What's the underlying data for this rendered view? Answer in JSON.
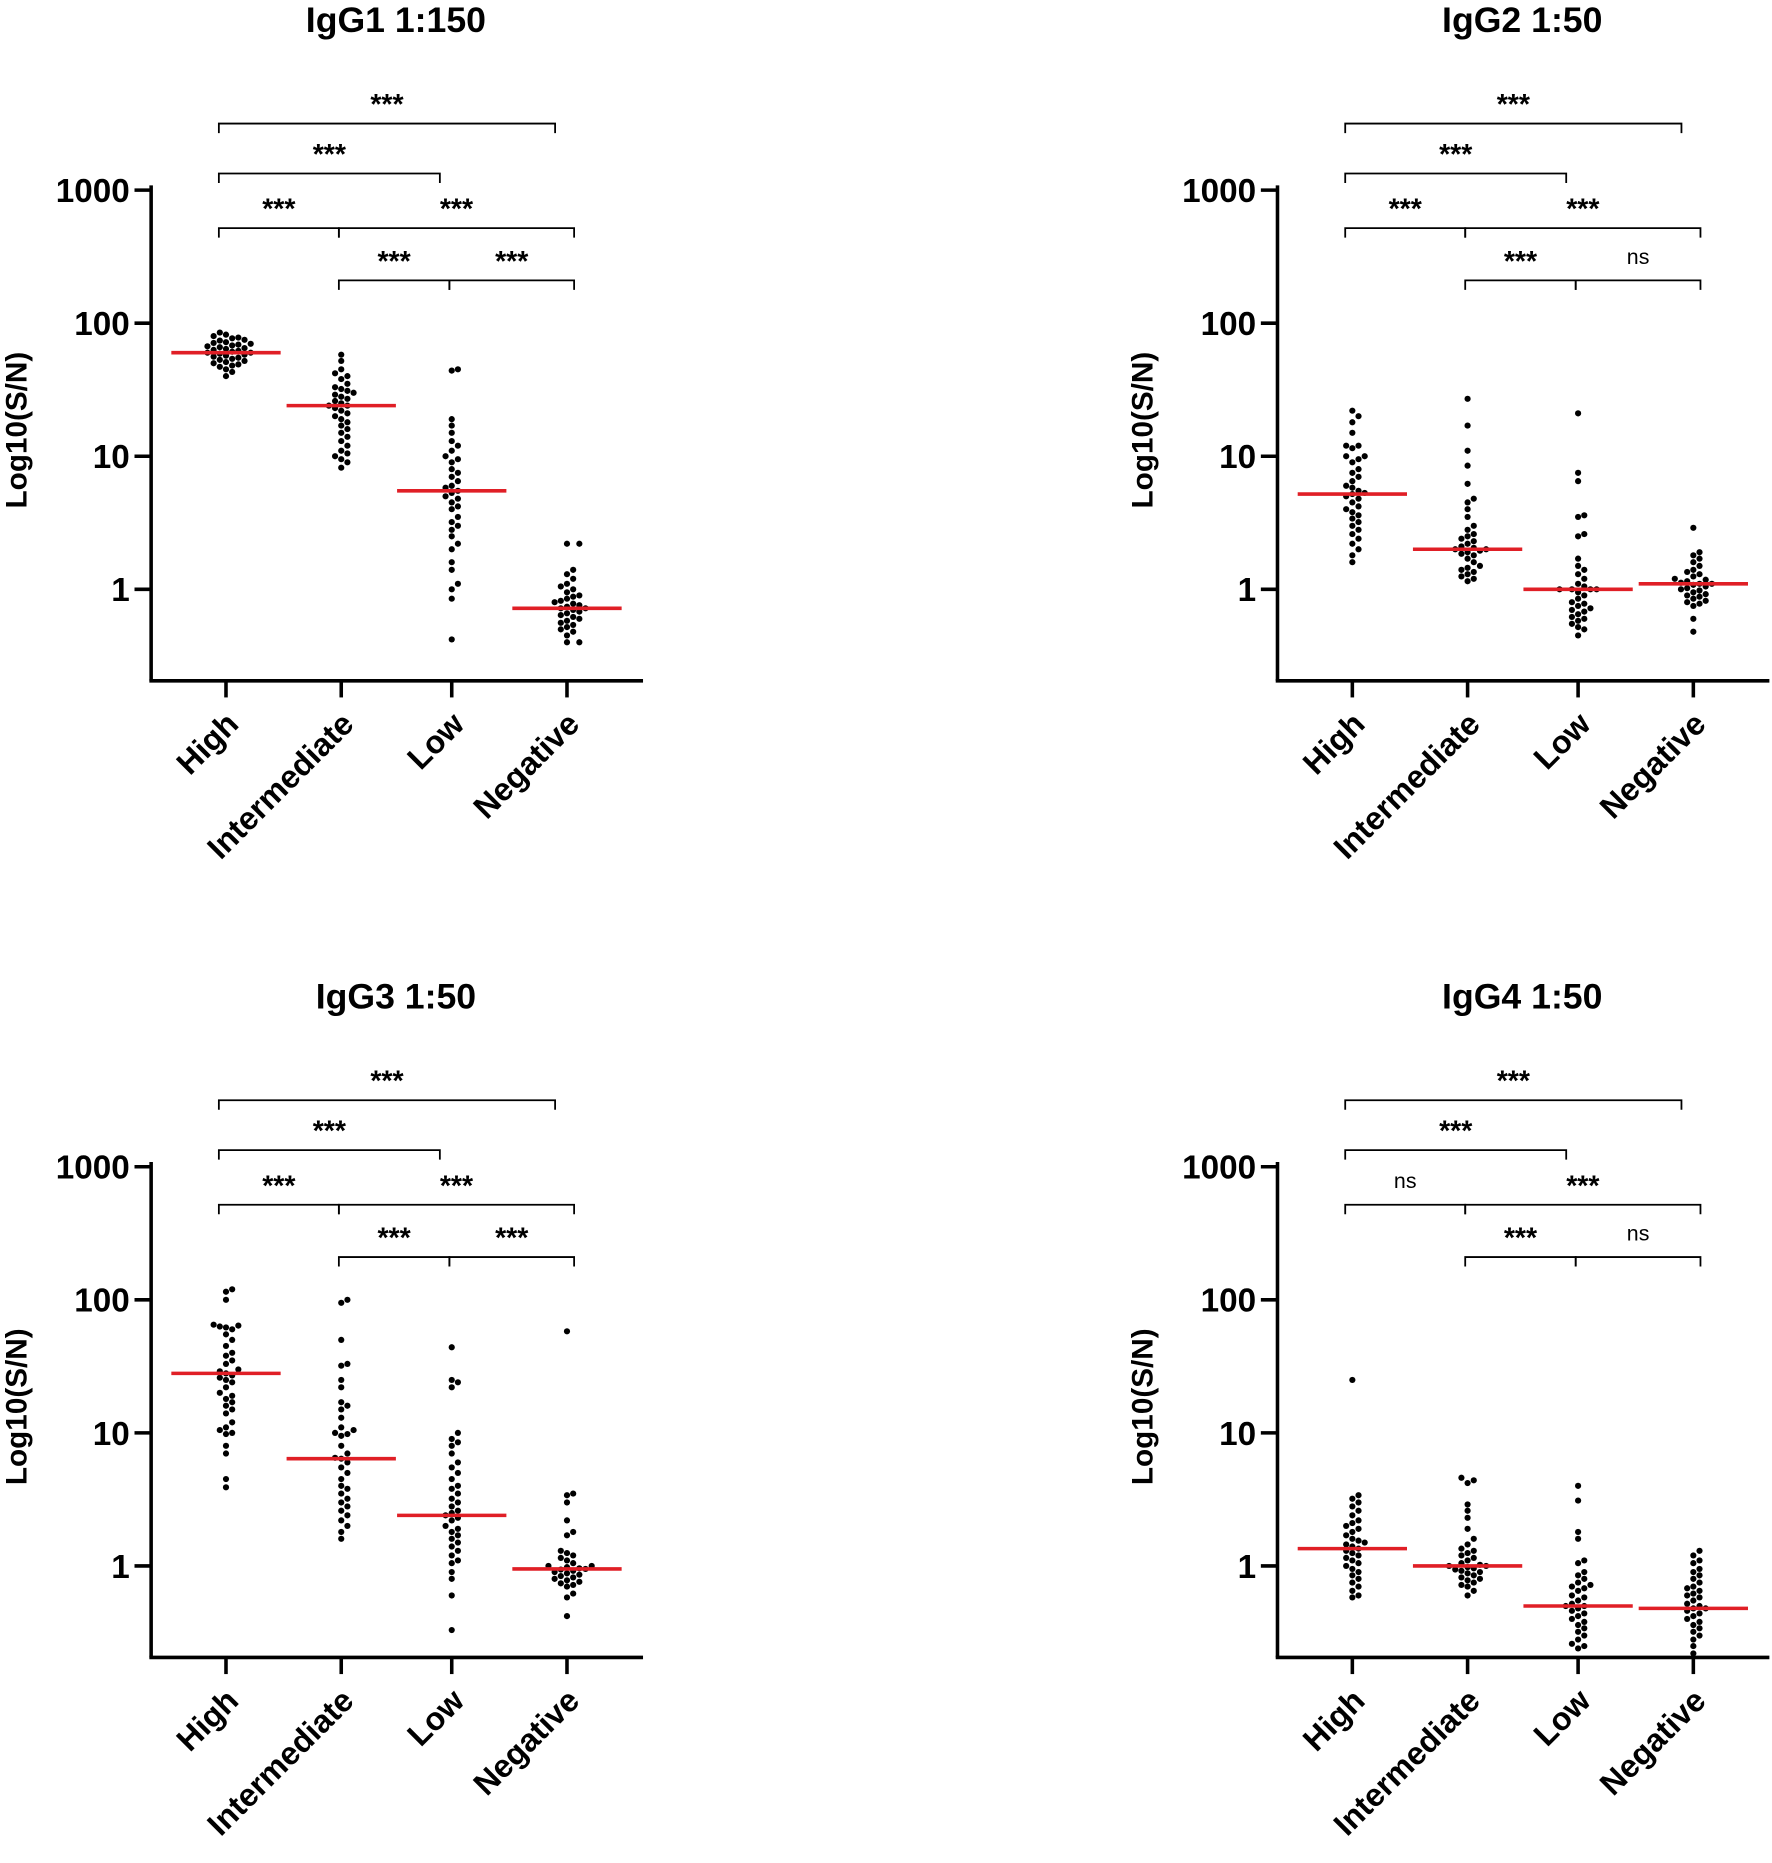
{
  "chart_data": [
    {
      "type": "scatter",
      "title": "IgG1 1:150",
      "ylabel": "Log10(S/N)",
      "xlabel": "",
      "yscale": "log",
      "ylim": [
        0.2,
        1000
      ],
      "yticks": [
        "1000",
        "100",
        "10",
        "1"
      ],
      "categories": [
        "High",
        "Intermediate",
        "Low",
        "Negative"
      ],
      "median_color": "#e01f26",
      "point_color": "#000000",
      "groups": [
        {
          "name": "High",
          "median": 60,
          "values": [
            85,
            82,
            80,
            78,
            77,
            75,
            74,
            72,
            71,
            70,
            69,
            68,
            67,
            66,
            65,
            64,
            63,
            62,
            61,
            60,
            60,
            59,
            58,
            57,
            56,
            55,
            54,
            53,
            52,
            51,
            50,
            49,
            48,
            47,
            45,
            43,
            40
          ]
        },
        {
          "name": "Intermediate",
          "median": 24,
          "values": [
            58,
            52,
            45,
            42,
            40,
            38,
            35,
            33,
            32,
            31,
            30,
            29,
            28,
            27,
            26,
            25,
            24,
            24,
            23,
            22,
            21,
            20,
            19,
            18,
            17,
            16,
            15,
            14,
            13,
            12,
            11,
            10.5,
            10,
            9.5,
            9,
            8.2
          ]
        },
        {
          "name": "Low",
          "median": 5.5,
          "values": [
            45,
            44,
            19,
            17,
            15,
            13,
            12,
            11,
            10,
            9.5,
            9,
            8,
            7.5,
            7,
            6.5,
            6,
            5.8,
            5.5,
            5.3,
            5,
            4.8,
            4.5,
            4.2,
            4,
            3.5,
            3.2,
            3,
            2.8,
            2.5,
            2.2,
            2,
            1.6,
            1.4,
            1.1,
            1.0,
            0.85,
            0.42
          ]
        },
        {
          "name": "Negative",
          "median": 0.72,
          "values": [
            2.2,
            2.2,
            1.4,
            1.3,
            1.2,
            1.1,
            1.05,
            1.0,
            0.95,
            0.9,
            0.88,
            0.85,
            0.82,
            0.8,
            0.78,
            0.76,
            0.74,
            0.72,
            0.72,
            0.7,
            0.68,
            0.66,
            0.64,
            0.62,
            0.6,
            0.58,
            0.56,
            0.54,
            0.52,
            0.5,
            0.48,
            0.45,
            0.4,
            0.4
          ]
        }
      ],
      "comparisons": [
        {
          "from": "High",
          "to": "Negative",
          "label": "***"
        },
        {
          "from": "High",
          "to": "Low",
          "label": "***"
        },
        {
          "from": "High",
          "to": "Intermediate",
          "label": "***"
        },
        {
          "from": "Intermediate",
          "to": "Negative",
          "label": "***"
        },
        {
          "from": "Intermediate",
          "to": "Low",
          "label": "***"
        },
        {
          "from": "Low",
          "to": "Negative",
          "label": "***"
        }
      ]
    },
    {
      "type": "scatter",
      "title": "IgG2 1:50",
      "ylabel": "Log10(S/N)",
      "xlabel": "",
      "yscale": "log",
      "ylim": [
        0.2,
        1000
      ],
      "yticks": [
        "1000",
        "100",
        "10",
        "1"
      ],
      "categories": [
        "High",
        "Intermediate",
        "Low",
        "Negative"
      ],
      "median_color": "#e01f26",
      "point_color": "#000000",
      "groups": [
        {
          "name": "High",
          "median": 5.2,
          "values": [
            22,
            20,
            18,
            15,
            12,
            12,
            11.5,
            10,
            10,
            9.5,
            9,
            8,
            7.5,
            7,
            6.5,
            6,
            5.8,
            5.5,
            5.3,
            5.2,
            5,
            4.8,
            4.5,
            4.2,
            4,
            3.8,
            3.6,
            3.4,
            3.2,
            3,
            2.8,
            2.6,
            2.4,
            2.2,
            2,
            1.8,
            1.6
          ]
        },
        {
          "name": "Intermediate",
          "median": 2.0,
          "values": [
            27,
            17,
            11,
            8.5,
            6.2,
            4.8,
            4.5,
            4,
            3.5,
            3,
            2.8,
            2.6,
            2.5,
            2.4,
            2.3,
            2.2,
            2.1,
            2.05,
            2,
            2,
            1.95,
            1.9,
            1.85,
            1.8,
            1.7,
            1.6,
            1.5,
            1.45,
            1.4,
            1.35,
            1.3,
            1.25,
            1.2,
            1.15
          ]
        },
        {
          "name": "Low",
          "median": 1.0,
          "values": [
            21,
            7.5,
            6.5,
            3.6,
            3.5,
            2.6,
            2.5,
            1.7,
            1.5,
            1.4,
            1.3,
            1.2,
            1.1,
            1.05,
            1.0,
            1.0,
            1.0,
            1.0,
            0.95,
            0.9,
            0.85,
            0.8,
            0.78,
            0.75,
            0.72,
            0.7,
            0.68,
            0.65,
            0.62,
            0.6,
            0.58,
            0.55,
            0.52,
            0.5,
            0.45
          ]
        },
        {
          "name": "Negative",
          "median": 1.1,
          "values": [
            2.9,
            1.9,
            1.8,
            1.7,
            1.6,
            1.5,
            1.4,
            1.35,
            1.3,
            1.25,
            1.2,
            1.18,
            1.15,
            1.12,
            1.1,
            1.1,
            1.08,
            1.05,
            1.02,
            1.0,
            0.98,
            0.95,
            0.92,
            0.9,
            0.88,
            0.85,
            0.82,
            0.8,
            0.78,
            0.75,
            0.6,
            0.48
          ]
        }
      ],
      "comparisons": [
        {
          "from": "High",
          "to": "Negative",
          "label": "***"
        },
        {
          "from": "High",
          "to": "Low",
          "label": "***"
        },
        {
          "from": "High",
          "to": "Intermediate",
          "label": "***"
        },
        {
          "from": "Intermediate",
          "to": "Negative",
          "label": "***"
        },
        {
          "from": "Intermediate",
          "to": "Low",
          "label": "***"
        },
        {
          "from": "Low",
          "to": "Negative",
          "label": "ns"
        }
      ]
    },
    {
      "type": "scatter",
      "title": "IgG3 1:50",
      "ylabel": "Log10(S/N)",
      "xlabel": "",
      "yscale": "log",
      "ylim": [
        0.2,
        1000
      ],
      "yticks": [
        "1000",
        "100",
        "10",
        "1"
      ],
      "categories": [
        "High",
        "Intermediate",
        "Low",
        "Negative"
      ],
      "median_color": "#e01f26",
      "point_color": "#000000",
      "groups": [
        {
          "name": "High",
          "median": 28,
          "values": [
            120,
            115,
            100,
            65,
            64,
            63,
            62,
            60,
            55,
            50,
            45,
            40,
            38,
            35,
            33,
            30,
            29,
            28,
            27,
            26,
            25,
            24,
            22,
            20,
            19,
            18,
            17,
            16,
            15,
            14,
            12,
            11,
            10.5,
            10,
            9.8,
            8,
            7,
            4.5,
            3.9
          ]
        },
        {
          "name": "Intermediate",
          "median": 6.4,
          "values": [
            100,
            95,
            50,
            33,
            32,
            25,
            22,
            17,
            16,
            15,
            13,
            11,
            10.5,
            10,
            9.8,
            9.5,
            8,
            7,
            6.5,
            6.4,
            6,
            5.5,
            5,
            4.5,
            4,
            3.8,
            3.5,
            3.2,
            3,
            2.8,
            2.6,
            2.4,
            2.2,
            2,
            1.8,
            1.6
          ]
        },
        {
          "name": "Low",
          "median": 2.4,
          "values": [
            44,
            25,
            24,
            22,
            10,
            9,
            8.5,
            8,
            7,
            6,
            5.5,
            5,
            4.5,
            4,
            3.8,
            3.5,
            3.2,
            3,
            2.8,
            2.6,
            2.5,
            2.4,
            2.3,
            2.2,
            2,
            1.9,
            1.8,
            1.7,
            1.6,
            1.5,
            1.4,
            1.3,
            1.2,
            1.1,
            1.05,
            0.9,
            0.8,
            0.6,
            0.33
          ]
        },
        {
          "name": "Negative",
          "median": 0.95,
          "values": [
            58,
            3.5,
            3.4,
            3.0,
            2.2,
            1.8,
            1.7,
            1.3,
            1.25,
            1.2,
            1.15,
            1.1,
            1.05,
            1.0,
            1.0,
            0.98,
            0.96,
            0.95,
            0.94,
            0.92,
            0.9,
            0.88,
            0.86,
            0.84,
            0.82,
            0.8,
            0.78,
            0.76,
            0.74,
            0.72,
            0.7,
            0.62,
            0.58,
            0.42
          ]
        }
      ],
      "comparisons": [
        {
          "from": "High",
          "to": "Negative",
          "label": "***"
        },
        {
          "from": "High",
          "to": "Low",
          "label": "***"
        },
        {
          "from": "High",
          "to": "Intermediate",
          "label": "***"
        },
        {
          "from": "Intermediate",
          "to": "Negative",
          "label": "***"
        },
        {
          "from": "Intermediate",
          "to": "Low",
          "label": "***"
        },
        {
          "from": "Low",
          "to": "Negative",
          "label": "***"
        }
      ]
    },
    {
      "type": "scatter",
      "title": "IgG4 1:50",
      "ylabel": "Log10(S/N)",
      "xlabel": "",
      "yscale": "log",
      "ylim": [
        0.2,
        1000
      ],
      "yticks": [
        "1000",
        "100",
        "10",
        "1"
      ],
      "categories": [
        "High",
        "Intermediate",
        "Low",
        "Negative"
      ],
      "median_color": "#e01f26",
      "point_color": "#000000",
      "groups": [
        {
          "name": "High",
          "median": 1.35,
          "values": [
            25,
            3.4,
            3.2,
            3.0,
            2.8,
            2.6,
            2.4,
            2.2,
            2.1,
            2,
            1.9,
            1.8,
            1.7,
            1.6,
            1.55,
            1.5,
            1.45,
            1.4,
            1.35,
            1.3,
            1.25,
            1.2,
            1.15,
            1.1,
            1.05,
            1.0,
            0.95,
            0.9,
            0.85,
            0.8,
            0.75,
            0.7,
            0.65,
            0.6,
            0.58
          ]
        },
        {
          "name": "Intermediate",
          "median": 1.0,
          "values": [
            4.6,
            4.4,
            4.2,
            2.9,
            2.6,
            2.3,
            1.9,
            1.6,
            1.45,
            1.35,
            1.3,
            1.25,
            1.2,
            1.15,
            1.1,
            1.05,
            1.02,
            1.0,
            1.0,
            0.98,
            0.96,
            0.94,
            0.92,
            0.9,
            0.88,
            0.85,
            0.82,
            0.8,
            0.78,
            0.75,
            0.72,
            0.7,
            0.65,
            0.6
          ]
        },
        {
          "name": "Low",
          "median": 0.5,
          "values": [
            4.0,
            3.1,
            1.8,
            1.6,
            1.1,
            1.05,
            0.9,
            0.85,
            0.8,
            0.75,
            0.72,
            0.7,
            0.68,
            0.65,
            0.6,
            0.58,
            0.55,
            0.52,
            0.5,
            0.5,
            0.48,
            0.46,
            0.44,
            0.42,
            0.4,
            0.38,
            0.36,
            0.34,
            0.32,
            0.3,
            0.28,
            0.26,
            0.25,
            0.24
          ]
        },
        {
          "name": "Negative",
          "median": 0.48,
          "values": [
            1.3,
            1.2,
            1.1,
            1.05,
            0.95,
            0.9,
            0.85,
            0.8,
            0.75,
            0.7,
            0.68,
            0.65,
            0.62,
            0.6,
            0.58,
            0.55,
            0.52,
            0.5,
            0.48,
            0.48,
            0.46,
            0.44,
            0.42,
            0.4,
            0.38,
            0.36,
            0.34,
            0.32,
            0.3,
            0.28,
            0.25,
            0.22
          ]
        }
      ],
      "comparisons": [
        {
          "from": "High",
          "to": "Negative",
          "label": "***"
        },
        {
          "from": "High",
          "to": "Low",
          "label": "***"
        },
        {
          "from": "High",
          "to": "Intermediate",
          "label": "ns"
        },
        {
          "from": "Intermediate",
          "to": "Negative",
          "label": "***"
        },
        {
          "from": "Intermediate",
          "to": "Low",
          "label": "***"
        },
        {
          "from": "Low",
          "to": "Negative",
          "label": "ns"
        }
      ]
    }
  ]
}
